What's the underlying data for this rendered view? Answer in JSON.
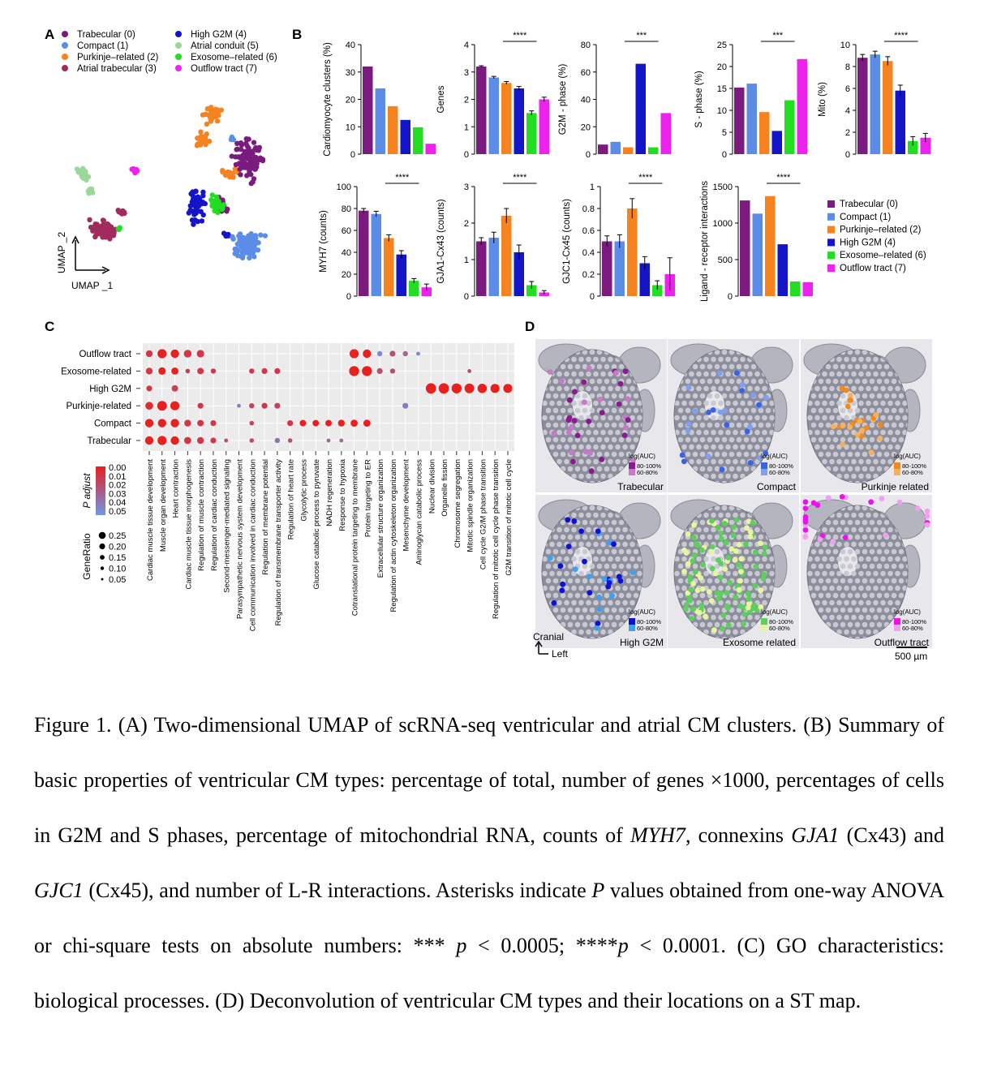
{
  "panel_labels": {
    "a": "A",
    "b": "B",
    "c": "C",
    "d": "D"
  },
  "clusters": [
    {
      "name": "Trabecular (0)",
      "short": "Trabecular",
      "color": "#7b1a7f"
    },
    {
      "name": "Compact (1)",
      "short": "Compact",
      "color": "#5b8de8"
    },
    {
      "name": "Purkinje–related (2)",
      "short": "Purkinje–related",
      "color": "#f5831f"
    },
    {
      "name": "Atrial trabecular (3)",
      "short": "Atrial trabecular",
      "color": "#a12a5e"
    },
    {
      "name": "High G2M (4)",
      "short": "High G2M",
      "color": "#1414c8"
    },
    {
      "name": "Atrial conduit (5)",
      "short": "Atrial conduit",
      "color": "#9ad89a"
    },
    {
      "name": "Exosome–related (6)",
      "short": "Exosome–related",
      "color": "#22dd22"
    },
    {
      "name": "Outflow tract (7)",
      "short": "Outflow tract",
      "color": "#ee22ee"
    }
  ],
  "umap": {
    "xlabel": "UMAP _1",
    "ylabel": "UMAP _2"
  },
  "chart_data": [
    {
      "type": "bar",
      "id": "pct",
      "ylabel": "Cardiomyocyte clusters (%)",
      "ylim": [
        0,
        40
      ],
      "ticks": [
        0,
        10,
        20,
        30,
        40
      ],
      "categories": [
        "Trabecular (0)",
        "Compact (1)",
        "Purkinje–related (2)",
        "High G2M (4)",
        "Exosome–related (6)",
        "Outflow tract (7)"
      ],
      "values": [
        32,
        24,
        17.5,
        12.5,
        9.8,
        3.8
      ],
      "errors": [],
      "sig": ""
    },
    {
      "type": "bar",
      "id": "genes",
      "ylabel": "Genes",
      "ylim": [
        0,
        4
      ],
      "ticks": [
        0,
        1,
        2,
        3,
        4
      ],
      "categories": [
        "Trabecular (0)",
        "Compact (1)",
        "Purkinje–related (2)",
        "High G2M (4)",
        "Exosome–related (6)",
        "Outflow tract (7)"
      ],
      "values": [
        3.2,
        2.8,
        2.6,
        2.4,
        1.5,
        2.0
      ],
      "errors": [
        0.03,
        0.04,
        0.05,
        0.07,
        0.08,
        0.08
      ],
      "sig": "****"
    },
    {
      "type": "bar",
      "id": "g2m",
      "ylabel": "G2M - phase (%)",
      "ylim": [
        0,
        80
      ],
      "ticks": [
        0,
        20,
        40,
        60,
        80
      ],
      "categories": [
        "Trabecular (0)",
        "Compact (1)",
        "Purkinje–related (2)",
        "High G2M (4)",
        "Exosome–related (6)",
        "Outflow tract (7)"
      ],
      "values": [
        7,
        9,
        5,
        66,
        5,
        30
      ],
      "errors": [],
      "sig": "***"
    },
    {
      "type": "bar",
      "id": "sphase",
      "ylabel": "S - phase (%)",
      "ylim": [
        0,
        25
      ],
      "ticks": [
        0,
        5,
        10,
        15,
        20,
        25
      ],
      "categories": [
        "Trabecular (0)",
        "Compact (1)",
        "Purkinje–related (2)",
        "High G2M (4)",
        "Exosome–related (6)",
        "Outflow tract (7)"
      ],
      "values": [
        15.2,
        16.1,
        9.6,
        5.3,
        12.3,
        21.7
      ],
      "errors": [],
      "sig": "***"
    },
    {
      "type": "bar",
      "id": "mito",
      "ylabel": "Mito (%)",
      "ylim": [
        0,
        10
      ],
      "ticks": [
        0,
        2,
        4,
        6,
        8,
        10
      ],
      "categories": [
        "Trabecular (0)",
        "Compact (1)",
        "Purkinje–related (2)",
        "High G2M (4)",
        "Exosome–related (6)",
        "Outflow tract (7)"
      ],
      "values": [
        8.8,
        9.1,
        8.5,
        5.8,
        1.2,
        1.5
      ],
      "errors": [
        0.3,
        0.3,
        0.4,
        0.5,
        0.4,
        0.4
      ],
      "sig": "****"
    },
    {
      "type": "bar",
      "id": "myh7",
      "ylabel": "MYH7  (counts)",
      "ylim": [
        0,
        100
      ],
      "ticks": [
        0,
        20,
        40,
        60,
        80,
        100
      ],
      "categories": [
        "Trabecular (0)",
        "Compact (1)",
        "Purkinje–related (2)",
        "High G2M (4)",
        "Exosome–related (6)",
        "Outflow tract (7)"
      ],
      "values": [
        78,
        75,
        53,
        38,
        14,
        8
      ],
      "errors": [
        2,
        2.5,
        3,
        3.5,
        2,
        3
      ],
      "sig": "****"
    },
    {
      "type": "bar",
      "id": "gja1",
      "ylabel": "GJA1-Cx43  (counts)",
      "ylim": [
        0,
        3
      ],
      "ticks": [
        0,
        1,
        2,
        3
      ],
      "categories": [
        "Trabecular (0)",
        "Compact (1)",
        "Purkinje–related (2)",
        "High G2M (4)",
        "Exosome–related (6)",
        "Outflow tract (7)"
      ],
      "values": [
        1.5,
        1.6,
        2.2,
        1.2,
        0.3,
        0.1
      ],
      "errors": [
        0.1,
        0.15,
        0.2,
        0.2,
        0.1,
        0.05
      ],
      "sig": "****"
    },
    {
      "type": "bar",
      "id": "gjc1",
      "ylabel": "GJC1-Cx45  (counts)",
      "ylim": [
        0,
        1.0
      ],
      "ticks": [
        0.0,
        0.2,
        0.4,
        0.6,
        0.8,
        1.0
      ],
      "categories": [
        "Trabecular (0)",
        "Compact (1)",
        "Purkinje–related (2)",
        "High G2M (4)",
        "Exosome–related (6)",
        "Outflow tract (7)"
      ],
      "values": [
        0.5,
        0.5,
        0.8,
        0.3,
        0.1,
        0.2
      ],
      "errors": [
        0.05,
        0.06,
        0.09,
        0.06,
        0.04,
        0.15
      ],
      "sig": "****"
    },
    {
      "type": "bar",
      "id": "lr",
      "ylabel": "Ligand - receptor interactions",
      "ylim": [
        0,
        1500
      ],
      "ticks": [
        0,
        500,
        1000,
        1500
      ],
      "categories": [
        "Trabecular (0)",
        "Compact (1)",
        "Purkinje–related (2)",
        "High G2M (4)",
        "Exosome–related (6)",
        "Outflow tract (7)"
      ],
      "values": [
        1310,
        1130,
        1370,
        710,
        200,
        190
      ],
      "errors": [],
      "sig": "****"
    },
    {
      "type": "scatter",
      "id": "go_dotplot",
      "rows": [
        "Outflow tract",
        "Exosome-related",
        "High G2M",
        "Purkinje-related",
        "Compact",
        "Trabecular"
      ],
      "columns": [
        "Cardiac muscle tissue development",
        "Muscle organ development",
        "Heart contraction",
        "Cardiac muscle tissue morphogenesis",
        "Regulation of muscle contraction",
        "Regulation of cardiac conduction",
        "Second-messenger-mediated signaling",
        "Parasympathetic nervous system development",
        "Cell communication involved in cardiac conduction",
        "Regulation of membrane potential",
        "Regulation of transmembrane transporter activity",
        "Regulation of heart rate",
        "Glycolytic process",
        "Glucose catabolic process to pyruvate",
        "NADH regeneration",
        "Response to hypoxia",
        "Cotranslational protein targeting to membrane",
        "Protein targeting to ER",
        "Extracellular structure organization",
        "Regulation of actin cytoskeleton organization",
        "Mesenchyme development",
        "Aminoglycan catabolic process",
        "Nuclear division",
        "Organelle fission",
        "Chromosome segregation",
        "Mitotic spindle organization",
        "Cell cycle G2/M phase transition",
        "Regulation of mitotic cell cycle phase transition",
        "G2M transition of mitotic cell cycle"
      ],
      "points": [
        {
          "row": 0,
          "col": 0,
          "ratio": 0.15,
          "p": 0.01
        },
        {
          "row": 0,
          "col": 1,
          "ratio": 0.22,
          "p": 0.0
        },
        {
          "row": 0,
          "col": 2,
          "ratio": 0.2,
          "p": 0.0
        },
        {
          "row": 0,
          "col": 3,
          "ratio": 0.18,
          "p": 0.01
        },
        {
          "row": 0,
          "col": 4,
          "ratio": 0.17,
          "p": 0.01
        },
        {
          "row": 0,
          "col": 16,
          "ratio": 0.22,
          "p": 0.0
        },
        {
          "row": 0,
          "col": 17,
          "ratio": 0.2,
          "p": 0.0
        },
        {
          "row": 0,
          "col": 18,
          "ratio": 0.1,
          "p": 0.045
        },
        {
          "row": 0,
          "col": 19,
          "ratio": 0.12,
          "p": 0.02
        },
        {
          "row": 0,
          "col": 20,
          "ratio": 0.1,
          "p": 0.03
        },
        {
          "row": 0,
          "col": 21,
          "ratio": 0.06,
          "p": 0.045
        },
        {
          "row": 1,
          "col": 0,
          "ratio": 0.15,
          "p": 0.01
        },
        {
          "row": 1,
          "col": 1,
          "ratio": 0.17,
          "p": 0.0
        },
        {
          "row": 1,
          "col": 2,
          "ratio": 0.16,
          "p": 0.0
        },
        {
          "row": 1,
          "col": 3,
          "ratio": 0.08,
          "p": 0.01
        },
        {
          "row": 1,
          "col": 4,
          "ratio": 0.14,
          "p": 0.01
        },
        {
          "row": 1,
          "col": 5,
          "ratio": 0.1,
          "p": 0.01
        },
        {
          "row": 1,
          "col": 8,
          "ratio": 0.1,
          "p": 0.01
        },
        {
          "row": 1,
          "col": 9,
          "ratio": 0.12,
          "p": 0.01
        },
        {
          "row": 1,
          "col": 10,
          "ratio": 0.12,
          "p": 0.01
        },
        {
          "row": 1,
          "col": 16,
          "ratio": 0.25,
          "p": 0.0
        },
        {
          "row": 1,
          "col": 17,
          "ratio": 0.25,
          "p": 0.0
        },
        {
          "row": 1,
          "col": 18,
          "ratio": 0.12,
          "p": 0.02
        },
        {
          "row": 1,
          "col": 19,
          "ratio": 0.1,
          "p": 0.02
        },
        {
          "row": 1,
          "col": 25,
          "ratio": 0.06,
          "p": 0.02
        },
        {
          "row": 2,
          "col": 0,
          "ratio": 0.12,
          "p": 0.01
        },
        {
          "row": 2,
          "col": 2,
          "ratio": 0.14,
          "p": 0.015
        },
        {
          "row": 2,
          "col": 22,
          "ratio": 0.26,
          "p": 0.0
        },
        {
          "row": 2,
          "col": 23,
          "ratio": 0.26,
          "p": 0.0
        },
        {
          "row": 2,
          "col": 24,
          "ratio": 0.25,
          "p": 0.0
        },
        {
          "row": 2,
          "col": 25,
          "ratio": 0.24,
          "p": 0.0
        },
        {
          "row": 2,
          "col": 26,
          "ratio": 0.23,
          "p": 0.0
        },
        {
          "row": 2,
          "col": 27,
          "ratio": 0.22,
          "p": 0.0
        },
        {
          "row": 2,
          "col": 28,
          "ratio": 0.22,
          "p": 0.0
        },
        {
          "row": 3,
          "col": 0,
          "ratio": 0.18,
          "p": 0.005
        },
        {
          "row": 3,
          "col": 1,
          "ratio": 0.24,
          "p": 0.0
        },
        {
          "row": 3,
          "col": 2,
          "ratio": 0.22,
          "p": 0.0
        },
        {
          "row": 3,
          "col": 4,
          "ratio": 0.12,
          "p": 0.01
        },
        {
          "row": 3,
          "col": 7,
          "ratio": 0.06,
          "p": 0.04
        },
        {
          "row": 3,
          "col": 8,
          "ratio": 0.1,
          "p": 0.015
        },
        {
          "row": 3,
          "col": 9,
          "ratio": 0.12,
          "p": 0.01
        },
        {
          "row": 3,
          "col": 10,
          "ratio": 0.12,
          "p": 0.015
        },
        {
          "row": 3,
          "col": 20,
          "ratio": 0.12,
          "p": 0.04
        },
        {
          "row": 4,
          "col": 0,
          "ratio": 0.2,
          "p": 0.0
        },
        {
          "row": 4,
          "col": 1,
          "ratio": 0.2,
          "p": 0.0
        },
        {
          "row": 4,
          "col": 2,
          "ratio": 0.2,
          "p": 0.0
        },
        {
          "row": 4,
          "col": 3,
          "ratio": 0.15,
          "p": 0.01
        },
        {
          "row": 4,
          "col": 4,
          "ratio": 0.14,
          "p": 0.01
        },
        {
          "row": 4,
          "col": 5,
          "ratio": 0.12,
          "p": 0.01
        },
        {
          "row": 4,
          "col": 8,
          "ratio": 0.08,
          "p": 0.015
        },
        {
          "row": 4,
          "col": 11,
          "ratio": 0.12,
          "p": 0.01
        },
        {
          "row": 4,
          "col": 12,
          "ratio": 0.14,
          "p": 0.0
        },
        {
          "row": 4,
          "col": 13,
          "ratio": 0.14,
          "p": 0.0
        },
        {
          "row": 4,
          "col": 14,
          "ratio": 0.14,
          "p": 0.0
        },
        {
          "row": 4,
          "col": 15,
          "ratio": 0.15,
          "p": 0.0
        },
        {
          "row": 4,
          "col": 16,
          "ratio": 0.16,
          "p": 0.0
        },
        {
          "row": 4,
          "col": 17,
          "ratio": 0.16,
          "p": 0.0
        },
        {
          "row": 5,
          "col": 0,
          "ratio": 0.2,
          "p": 0.0
        },
        {
          "row": 5,
          "col": 1,
          "ratio": 0.22,
          "p": 0.0
        },
        {
          "row": 5,
          "col": 2,
          "ratio": 0.2,
          "p": 0.0
        },
        {
          "row": 5,
          "col": 3,
          "ratio": 0.16,
          "p": 0.01
        },
        {
          "row": 5,
          "col": 4,
          "ratio": 0.15,
          "p": 0.01
        },
        {
          "row": 5,
          "col": 5,
          "ratio": 0.12,
          "p": 0.01
        },
        {
          "row": 5,
          "col": 6,
          "ratio": 0.06,
          "p": 0.02
        },
        {
          "row": 5,
          "col": 8,
          "ratio": 0.08,
          "p": 0.02
        },
        {
          "row": 5,
          "col": 10,
          "ratio": 0.1,
          "p": 0.035
        },
        {
          "row": 5,
          "col": 11,
          "ratio": 0.08,
          "p": 0.02
        },
        {
          "row": 5,
          "col": 14,
          "ratio": 0.06,
          "p": 0.03
        },
        {
          "row": 5,
          "col": 15,
          "ratio": 0.06,
          "p": 0.03
        }
      ],
      "padjust_legend": {
        "title": "P adjust",
        "ticks": [
          "0.00",
          "0.01",
          "0.02",
          "0.03",
          "0.04",
          "0.05"
        ]
      },
      "generatio_legend": {
        "title": "GeneRatio",
        "ticks": [
          "0.25",
          "0.20",
          "0.15",
          "0.10",
          "0.05"
        ],
        "values": [
          0.25,
          0.2,
          0.15,
          0.1,
          0.05
        ]
      }
    }
  ],
  "st_map": {
    "panels": [
      {
        "label": "Trabecular",
        "color": "#8a1a8e",
        "light": "#c87ac8"
      },
      {
        "label": "Compact",
        "color": "#3a62e8",
        "light": "#7fa0f0"
      },
      {
        "label": "Purkinje related",
        "color": "#f08a1e",
        "light": "#f5b060"
      },
      {
        "label": "High G2M",
        "color": "#0c10d8",
        "light": "#3fa0f0"
      },
      {
        "label": "Exosome related",
        "color": "#5ccf5c",
        "light": "#e8f5a0"
      },
      {
        "label": "Outflow tract",
        "color": "#ee10ee",
        "light": "#f0a0f0"
      }
    ],
    "legend_title": "log(AUC)",
    "legend_high": "80-100%",
    "legend_low": "60-80%",
    "orientation_top": "Cranial",
    "orientation_left": "Left",
    "scale_bar": "500 µm"
  },
  "caption": {
    "p1": "Figure 1. (A) Two-dimensional UMAP of scRNA-seq ventricular and atrial CM clusters. (B) Summary of basic properties of ventricular CM types: percentage of total, number of genes ×1000, percentages of cells in G2M and S phases, percentage of mitochondrial RNA, counts of ",
    "g1": "MYH7",
    "p2": ", connexins ",
    "g2": "GJA1",
    "p3": " (Cx43) and ",
    "g3": "GJC1",
    "p4": " (Cx45), and number of L-R interactions. Asterisks indicate ",
    "g4": "P",
    "p5": " values obtained from one-way ANOVA or chi-square tests on absolute numbers: *** ",
    "g5": "p",
    "p6": " < 0.0005; ****",
    "g6": "p",
    "p7": " < 0.0001. (C) GO characteristics: biological processes. (D) Deconvolution of ventricular CM types and their locations on a ST map."
  }
}
